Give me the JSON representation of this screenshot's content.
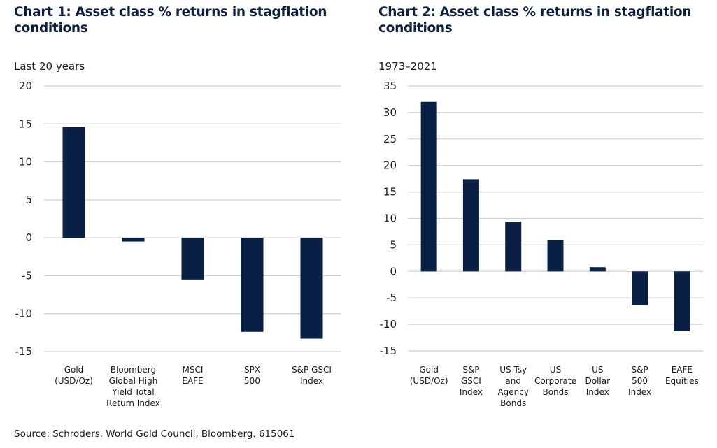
{
  "colors": {
    "bar": "#0a1f44",
    "grid": "#d0d0d0",
    "text": "#1a1a1a",
    "title": "#0d1f3c"
  },
  "chart_data": [
    {
      "type": "bar",
      "title": "Chart 1: Asset class % returns in stagflation conditions",
      "subtitle": "Last 20 years",
      "xlabel": "",
      "ylabel": "",
      "ylim": [
        -15,
        20
      ],
      "yticks": [
        20,
        15,
        10,
        5,
        0,
        -5,
        -10,
        -15
      ],
      "grid": true,
      "legend": "none",
      "categories": [
        [
          "Gold",
          "(USD/Oz)"
        ],
        [
          "Bloomberg",
          "Global High",
          "Yield Total",
          "Return Index"
        ],
        [
          "MSCI",
          "EAFE"
        ],
        [
          "SPX",
          "500"
        ],
        [
          "S&P GSCI",
          "Index"
        ]
      ],
      "values": [
        14.6,
        -0.5,
        -5.5,
        -12.4,
        -13.3
      ]
    },
    {
      "type": "bar",
      "title": "Chart 2: Asset class % returns in stagflation conditions",
      "subtitle": "1973–2021",
      "xlabel": "",
      "ylabel": "",
      "ylim": [
        -15,
        35
      ],
      "yticks": [
        35,
        30,
        25,
        20,
        15,
        10,
        5,
        0,
        -5,
        -10,
        -15
      ],
      "grid": true,
      "legend": "none",
      "categories": [
        [
          "Gold",
          "(USD/Oz)"
        ],
        [
          "S&P",
          "GSCI",
          "Index"
        ],
        [
          "US Tsy",
          "and",
          "Agency",
          "Bonds"
        ],
        [
          "US",
          "Corporate",
          "Bonds"
        ],
        [
          "US",
          "Dollar",
          "Index"
        ],
        [
          "S&P",
          "500",
          "Index"
        ],
        [
          "EAFE",
          "Equities"
        ]
      ],
      "values": [
        32.0,
        17.4,
        9.4,
        5.9,
        0.8,
        -6.4,
        -11.3
      ]
    }
  ],
  "source": "Source: Schroders. World Gold Council, Bloomberg. 615061"
}
